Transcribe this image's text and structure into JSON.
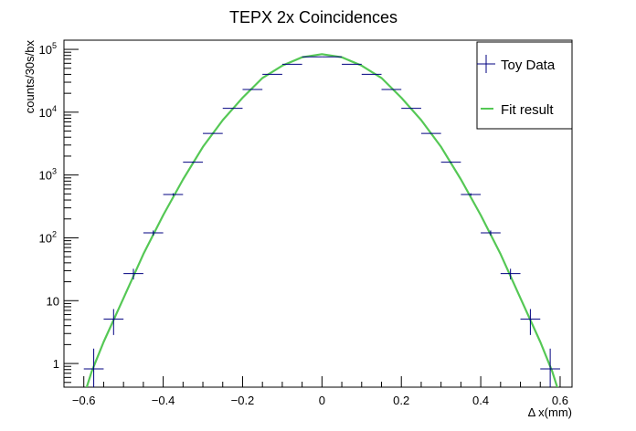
{
  "chart_data": {
    "type": "scatter",
    "title": "TEPX 2x Coincidences",
    "xlabel": "Δ x(mm)",
    "ylabel": "counts/30s/bx",
    "xlim": [
      -0.65,
      0.63
    ],
    "ylim": [
      0.42,
      140000
    ],
    "yscale": "log",
    "grid": false,
    "legend_position": "top-right",
    "colors": {
      "data": "#000080",
      "fit": "#55c855"
    },
    "x_ticks": [
      {
        "value": -0.6,
        "label": "−0.6"
      },
      {
        "value": -0.4,
        "label": "−0.4"
      },
      {
        "value": -0.2,
        "label": "−0.2"
      },
      {
        "value": 0,
        "label": "0"
      },
      {
        "value": 0.2,
        "label": "0.2"
      },
      {
        "value": 0.4,
        "label": "0.4"
      },
      {
        "value": 0.6,
        "label": "0.6"
      }
    ],
    "y_ticks": [
      {
        "value": 1,
        "label": "1",
        "base": "",
        "exp": ""
      },
      {
        "value": 10,
        "label": "10",
        "base": "",
        "exp": ""
      },
      {
        "value": 100,
        "label": "",
        "base": "10",
        "exp": "2"
      },
      {
        "value": 1000,
        "label": "",
        "base": "10",
        "exp": "3"
      },
      {
        "value": 10000,
        "label": "",
        "base": "10",
        "exp": "4"
      },
      {
        "value": 100000,
        "label": "",
        "base": "10",
        "exp": "5"
      }
    ],
    "legend": [
      {
        "label": "Toy Data",
        "kind": "data"
      },
      {
        "label": "Fit result",
        "kind": "fit"
      }
    ],
    "series": [
      {
        "name": "Toy Data",
        "kind": "points",
        "bin_half_width": 0.025,
        "x": [
          -0.575,
          -0.525,
          -0.475,
          -0.425,
          -0.375,
          -0.325,
          -0.275,
          -0.225,
          -0.175,
          -0.125,
          -0.075,
          -0.025,
          0.025,
          0.075,
          0.125,
          0.175,
          0.225,
          0.275,
          0.325,
          0.375,
          0.425,
          0.475,
          0.525,
          0.575
        ],
        "y": [
          0.82,
          5.1,
          27,
          120,
          490,
          1600,
          4600,
          11500,
          23000,
          40000,
          58000,
          76000,
          76000,
          58000,
          40000,
          23000,
          11500,
          4600,
          1600,
          490,
          120,
          27,
          5.1,
          0.82
        ]
      },
      {
        "name": "Fit result",
        "kind": "curve",
        "x": [
          -0.6,
          -0.58,
          -0.55,
          -0.5,
          -0.45,
          -0.4,
          -0.35,
          -0.3,
          -0.25,
          -0.2,
          -0.15,
          -0.1,
          -0.05,
          0,
          0.05,
          0.1,
          0.15,
          0.2,
          0.25,
          0.3,
          0.35,
          0.4,
          0.45,
          0.5,
          0.55,
          0.58,
          0.6
        ],
        "y": [
          0.3,
          0.75,
          2.2,
          11,
          55,
          230,
          850,
          2800,
          7500,
          17000,
          35000,
          55000,
          75000,
          84000,
          75000,
          55000,
          35000,
          17000,
          7500,
          2800,
          850,
          230,
          55,
          11,
          2.2,
          0.75,
          0.3
        ]
      }
    ]
  }
}
